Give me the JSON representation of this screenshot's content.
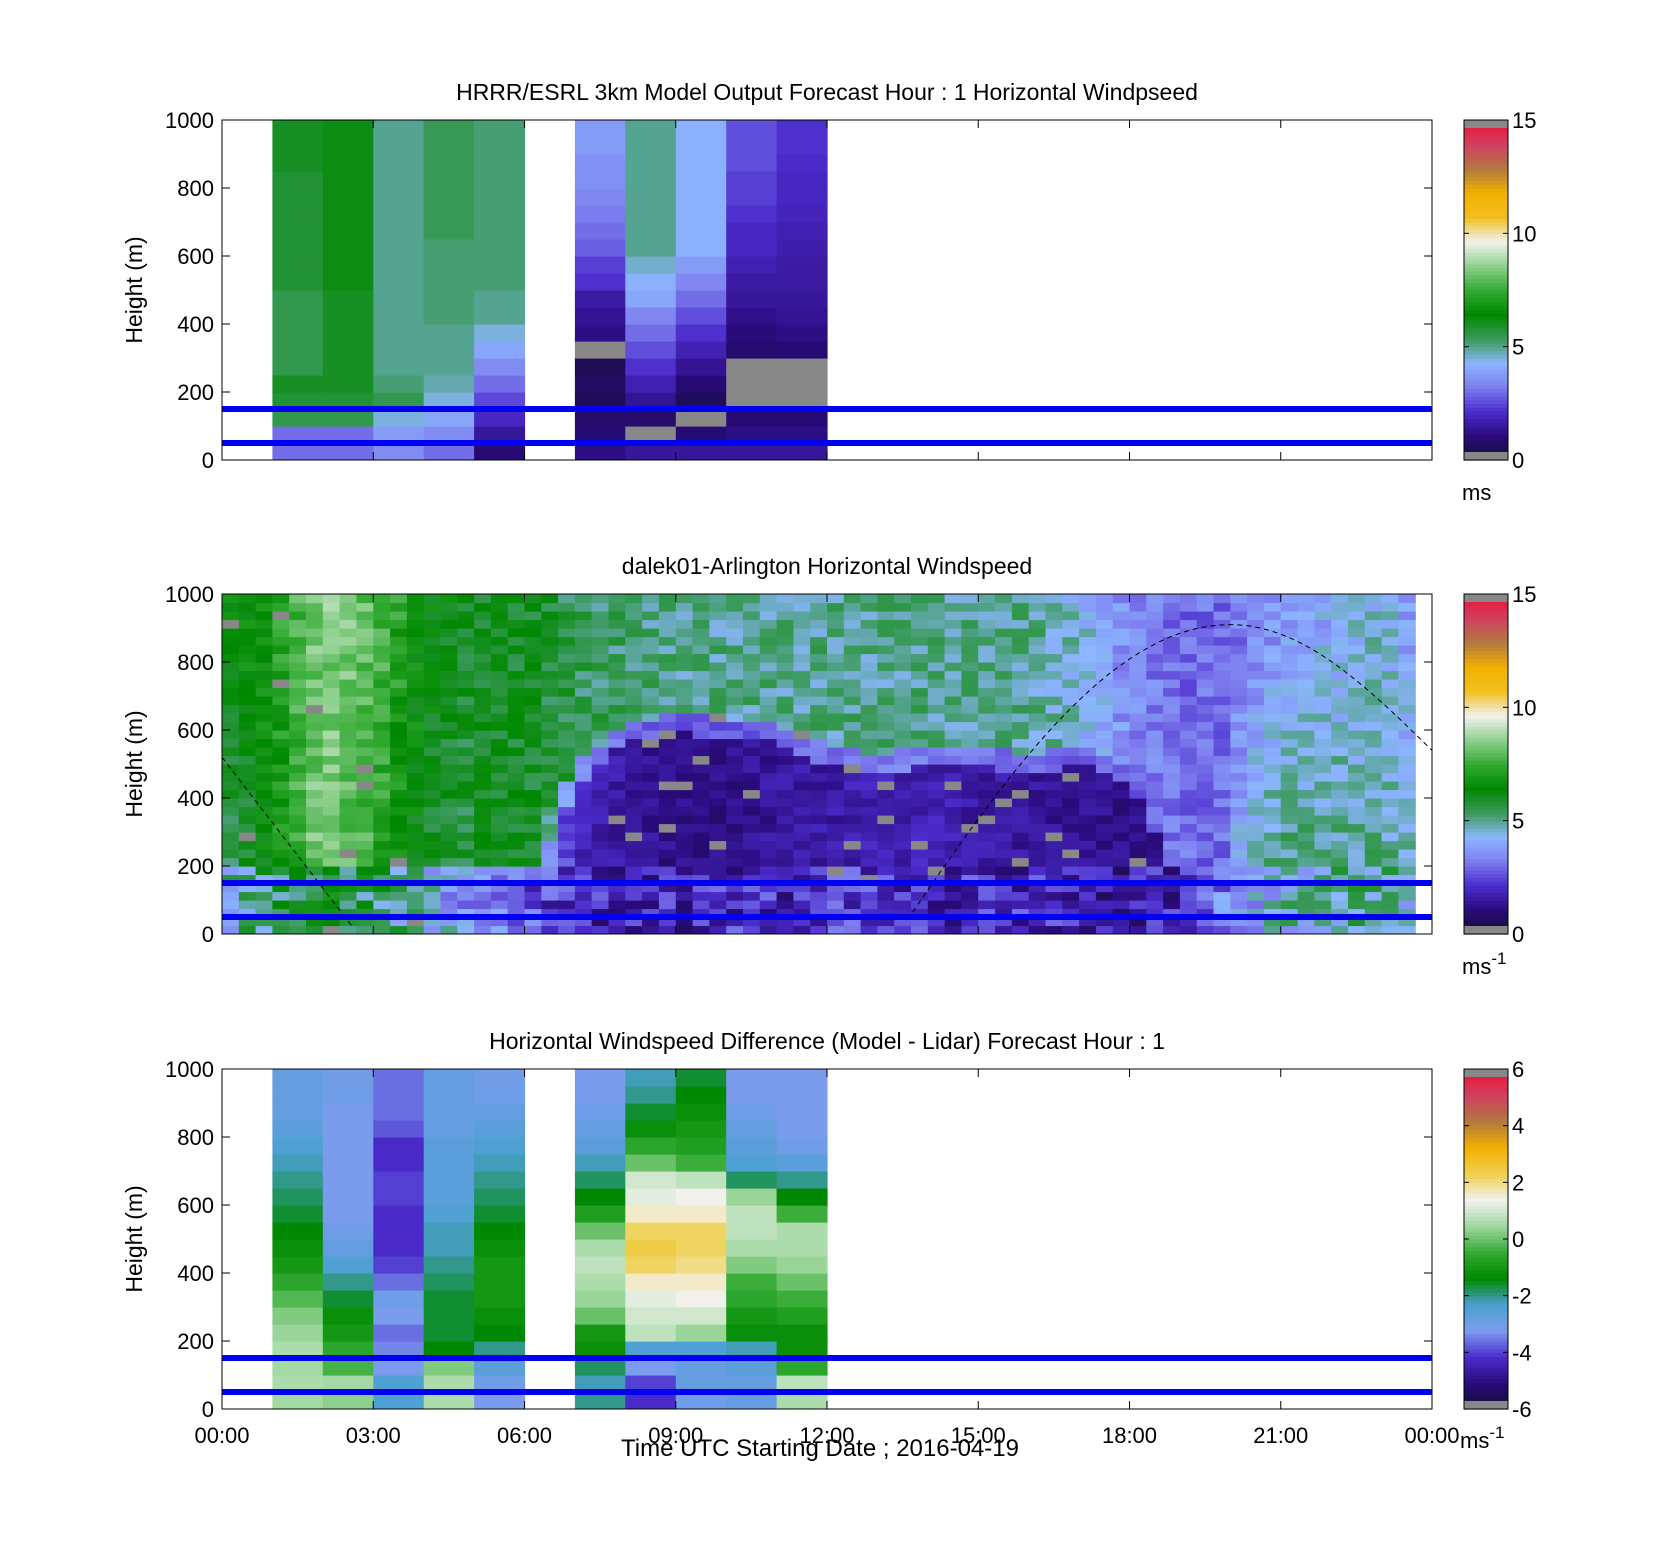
{
  "figure": {
    "xlabel": "Time UTC  Starting Date ; 2016-04-19",
    "xticks": [
      "00:00",
      "03:00",
      "06:00",
      "09:00",
      "12:00",
      "15:00",
      "18:00",
      "21:00",
      "00:00"
    ]
  },
  "colors": {
    "ref_line": "#0000ee",
    "nan": "#888888",
    "speed_cmap": [
      "#111133",
      "#2a0a7a",
      "#4b2ccc",
      "#7d7dee",
      "#8cb6ff",
      "#3a9a5a",
      "#008800",
      "#33aa33",
      "#8fd08f",
      "#f2f2ee",
      "#f0c020",
      "#f2b000",
      "#b07a40",
      "#d04060",
      "#ee1133"
    ],
    "diff_cmap": [
      "#111133",
      "#2a0a7a",
      "#4b2ccc",
      "#7d9cee",
      "#4aa0d0",
      "#008800",
      "#33aa33",
      "#a0d8a0",
      "#f2f2ee",
      "#f0d050",
      "#f2b000",
      "#b07a40",
      "#d04060",
      "#ee1133"
    ]
  },
  "chart_data": [
    {
      "type": "heatmap",
      "title": "HRRR/ESRL 3km Model Output   Forecast Hour : 1 Horizontal Windpseed",
      "ylabel": "Height (m)",
      "xlim": [
        0,
        24
      ],
      "ylim": [
        0,
        1000
      ],
      "yticks": [
        "0",
        "200",
        "400",
        "600",
        "800",
        "1000"
      ],
      "colorbar": {
        "ticks": [
          "0",
          "5",
          "10",
          "15"
        ],
        "range": [
          0,
          15
        ],
        "unit": "ms",
        "unit_sup": ""
      },
      "reference_lines_m": [
        50,
        150
      ],
      "heights_m": [
        25,
        75,
        125,
        175,
        225,
        275,
        325,
        375,
        425,
        475,
        525,
        575,
        625,
        675,
        725,
        775,
        825,
        875,
        925,
        975
      ],
      "columns": [
        {
          "hour": 1,
          "values": [
            3,
            3,
            5.5,
            5.8,
            6.0,
            5.5,
            5.5,
            5.5,
            5.5,
            5.5,
            5.8,
            5.8,
            5.8,
            5.8,
            5.8,
            5.8,
            5.8,
            6.0,
            6.0,
            6.0
          ]
        },
        {
          "hour": 2,
          "values": [
            3,
            3,
            5.5,
            5.8,
            6.0,
            6.0,
            6.0,
            6.0,
            6.0,
            6.0,
            6.2,
            6.2,
            6.2,
            6.2,
            6.2,
            6.2,
            6.2,
            6.2,
            6.2,
            6.2
          ]
        },
        {
          "hour": 3,
          "values": [
            3.5,
            3.8,
            4.5,
            5.5,
            5.2,
            5.0,
            5.0,
            5.0,
            5.0,
            5.0,
            5.0,
            5.0,
            5.0,
            5.0,
            5.0,
            5.0,
            5.0,
            5.0,
            5.0,
            5.0
          ]
        },
        {
          "hour": 4,
          "values": [
            3,
            3.5,
            4.0,
            4.5,
            4.8,
            5.0,
            5.0,
            5.0,
            5.2,
            5.2,
            5.2,
            5.2,
            5.2,
            5.4,
            5.4,
            5.4,
            5.4,
            5.4,
            5.4,
            5.4
          ]
        },
        {
          "hour": 5,
          "values": [
            1,
            1.5,
            2.0,
            2.5,
            3.0,
            3.5,
            4.0,
            4.5,
            5.0,
            5.0,
            5.2,
            5.2,
            5.2,
            5.2,
            5.2,
            5.2,
            5.2,
            5.2,
            5.2,
            5.2
          ]
        },
        {
          "hour": 7,
          "values": [
            1.2,
            1.0,
            0.8,
            0.6,
            0.7,
            0.5,
            null,
            1.2,
            1.4,
            1.6,
            2.2,
            2.4,
            2.8,
            3.0,
            3.2,
            3.4,
            3.6,
            3.6,
            3.8,
            3.8
          ]
        },
        {
          "hour": 8,
          "values": [
            1.5,
            null,
            0.8,
            1.4,
            1.8,
            2.2,
            2.6,
            3.0,
            3.4,
            4.0,
            4.2,
            4.6,
            5.0,
            5.0,
            5.0,
            5.0,
            5.0,
            5.0,
            5.0,
            5.0
          ]
        },
        {
          "hour": 9,
          "values": [
            1.5,
            1.0,
            null,
            0.6,
            1.0,
            1.4,
            1.8,
            2.2,
            2.6,
            3.0,
            3.4,
            3.8,
            4.2,
            4.2,
            4.2,
            4.2,
            4.2,
            4.2,
            4.2,
            4.2
          ]
        },
        {
          "hour": 10,
          "values": [
            1.5,
            1.2,
            1.0,
            null,
            null,
            null,
            0.9,
            1.1,
            1.3,
            1.5,
            1.6,
            1.8,
            2.0,
            2.0,
            2.2,
            2.4,
            2.4,
            2.6,
            2.6,
            2.6
          ]
        },
        {
          "hour": 11,
          "values": [
            1.5,
            1.2,
            1.0,
            null,
            null,
            null,
            1.0,
            1.2,
            1.4,
            1.5,
            1.6,
            1.6,
            1.7,
            1.8,
            1.9,
            2.0,
            2.0,
            2.1,
            2.2,
            2.2
          ]
        }
      ]
    },
    {
      "type": "heatmap",
      "title": "dalek01-Arlington  Horizontal Windspeed",
      "ylabel": "Height (m)",
      "xlim": [
        0,
        24
      ],
      "ylim": [
        0,
        1000
      ],
      "yticks": [
        "0",
        "200",
        "400",
        "600",
        "800",
        "1000"
      ],
      "colorbar": {
        "ticks": [
          "0",
          "5",
          "10",
          "15"
        ],
        "range": [
          0,
          15
        ],
        "unit": "ms",
        "unit_sup": "-1"
      },
      "reference_lines_m": [
        50,
        150
      ],
      "hours": [
        0,
        1,
        2,
        3,
        4,
        5,
        6,
        7,
        8,
        9,
        10,
        11,
        12,
        13,
        14,
        15,
        16,
        17,
        18,
        19,
        20,
        21,
        22,
        23,
        24
      ],
      "profiles": {
        "speed_top_ms": [
          6.5,
          7.0,
          8.5,
          8.0,
          6.5,
          6.0,
          6.0,
          5.5,
          5.2,
          5.0,
          5.0,
          5.0,
          5.0,
          5.0,
          5.0,
          5.0,
          5.0,
          4.5,
          3.5,
          3.0,
          3.0,
          3.5,
          4.0,
          4.5,
          3.0
        ],
        "speed_mid_ms": [
          5.0,
          6.5,
          8.5,
          7.5,
          6.0,
          5.5,
          5.0,
          2.0,
          1.5,
          1.2,
          1.2,
          1.5,
          1.6,
          1.8,
          1.8,
          1.6,
          1.5,
          1.4,
          1.2,
          1.6,
          4.0,
          5.2,
          5.0,
          5.0,
          4.5
        ],
        "speed_low_ms": [
          4.5,
          5.5,
          6.0,
          5.5,
          4.5,
          3.5,
          2.8,
          2.0,
          1.8,
          1.8,
          2.0,
          2.0,
          2.2,
          2.2,
          2.0,
          2.0,
          2.0,
          1.8,
          1.6,
          2.0,
          3.5,
          4.5,
          4.8,
          4.8,
          4.5
        ]
      },
      "low_jet_top_m": [
        0,
        0,
        0,
        0,
        0,
        0,
        180,
        500,
        620,
        650,
        640,
        620,
        560,
        520,
        560,
        560,
        520,
        560,
        500,
        200,
        0,
        0,
        0,
        0,
        0
      ],
      "dashed_curve": "sun elevation",
      "dashed_curve_points": [
        [
          0,
          520
        ],
        [
          2.7,
          0
        ],
        [
          13.4,
          0
        ],
        [
          20,
          910
        ],
        [
          24,
          540
        ]
      ]
    },
    {
      "type": "heatmap",
      "title": "Horizontal Windspeed Difference (Model - Lidar) Forecast Hour : 1",
      "ylabel": "Height (m)",
      "xlim": [
        0,
        24
      ],
      "ylim": [
        0,
        1000
      ],
      "yticks": [
        "0",
        "200",
        "400",
        "600",
        "800",
        "1000"
      ],
      "colorbar": {
        "ticks": [
          "-6",
          "-4",
          "-2",
          "0",
          "2",
          "4",
          "6"
        ],
        "range": [
          -6,
          6
        ],
        "unit": "ms",
        "unit_sup": "-1"
      },
      "reference_lines_m": [
        50,
        150
      ],
      "heights_m": [
        25,
        75,
        125,
        175,
        225,
        275,
        325,
        375,
        425,
        475,
        525,
        575,
        625,
        675,
        725,
        775,
        825,
        875,
        925,
        975
      ],
      "columns": [
        {
          "hour": 1,
          "values": [
            0.5,
            0.6,
            0.5,
            0.6,
            0.4,
            0.2,
            -0.2,
            -0.6,
            -1.0,
            -1.2,
            -1.4,
            -1.6,
            -1.8,
            -2.0,
            -2.2,
            -2.4,
            -2.6,
            -2.8,
            -2.8,
            -2.8
          ]
        },
        {
          "hour": 2,
          "values": [
            0.3,
            0.5,
            -0.3,
            -0.6,
            -1.0,
            -1.2,
            -1.6,
            -2.0,
            -2.4,
            -2.8,
            -3.0,
            -3.2,
            -3.2,
            -3.2,
            -3.2,
            -3.2,
            -3.2,
            -3.2,
            -3.0,
            -3.0
          ]
        },
        {
          "hour": 3,
          "values": [
            -2.4,
            -2.4,
            -3.2,
            -3.4,
            -3.6,
            -3.2,
            -3.0,
            -3.6,
            -4.0,
            -4.2,
            -4.2,
            -4.2,
            -4.0,
            -4.0,
            -4.2,
            -4.2,
            -3.8,
            -3.6,
            -3.6,
            -3.6
          ]
        },
        {
          "hour": 4,
          "values": [
            0.6,
            0.6,
            0.2,
            -1.4,
            -1.6,
            -1.6,
            -1.6,
            -1.8,
            -2.0,
            -2.2,
            -2.2,
            -2.4,
            -2.6,
            -2.6,
            -2.6,
            -2.6,
            -2.8,
            -2.8,
            -2.8,
            -2.8
          ]
        },
        {
          "hour": 5,
          "values": [
            -3.2,
            -3.0,
            -2.6,
            -2.0,
            -1.4,
            -1.2,
            -1.0,
            -1.0,
            -1.0,
            -1.2,
            -1.4,
            -1.6,
            -1.8,
            -2.0,
            -2.2,
            -2.4,
            -2.6,
            -2.8,
            -3.0,
            -3.0
          ]
        },
        {
          "hour": 7,
          "values": [
            -2.0,
            -2.2,
            -1.8,
            -1.2,
            -1.0,
            0.0,
            0.4,
            0.6,
            0.8,
            0.6,
            0.0,
            -0.8,
            -1.4,
            -1.8,
            -2.2,
            -2.6,
            -2.8,
            -3.0,
            -3.2,
            -3.2
          ]
        },
        {
          "hour": 8,
          "values": [
            -4.2,
            -4.0,
            -3.2,
            -2.4,
            0.8,
            1.0,
            1.2,
            1.6,
            2.2,
            2.4,
            2.2,
            1.6,
            1.2,
            1.0,
            0.0,
            -0.6,
            -1.2,
            -1.6,
            -2.0,
            -2.2
          ]
        },
        {
          "hour": 9,
          "values": [
            -3.0,
            -2.8,
            -2.8,
            -2.4,
            0.4,
            1.0,
            1.4,
            1.6,
            2.0,
            2.2,
            2.2,
            1.6,
            1.4,
            0.8,
            -0.4,
            -0.8,
            -1.0,
            -1.2,
            -1.4,
            -1.6
          ]
        },
        {
          "hour": 10,
          "values": [
            -2.8,
            -2.8,
            -2.6,
            -2.2,
            -1.2,
            -1.0,
            -0.6,
            -0.4,
            0.2,
            0.6,
            0.8,
            0.8,
            0.4,
            -1.8,
            -2.4,
            -2.6,
            -2.8,
            -3.0,
            -3.2,
            -3.2
          ]
        },
        {
          "hour": 11,
          "values": [
            0.6,
            0.8,
            -0.6,
            -1.2,
            -1.2,
            -0.8,
            -0.4,
            0.0,
            0.4,
            0.6,
            0.6,
            -0.4,
            -1.4,
            -2.0,
            -2.6,
            -3.0,
            -3.2,
            -3.2,
            -3.2,
            -3.2
          ]
        }
      ]
    }
  ]
}
